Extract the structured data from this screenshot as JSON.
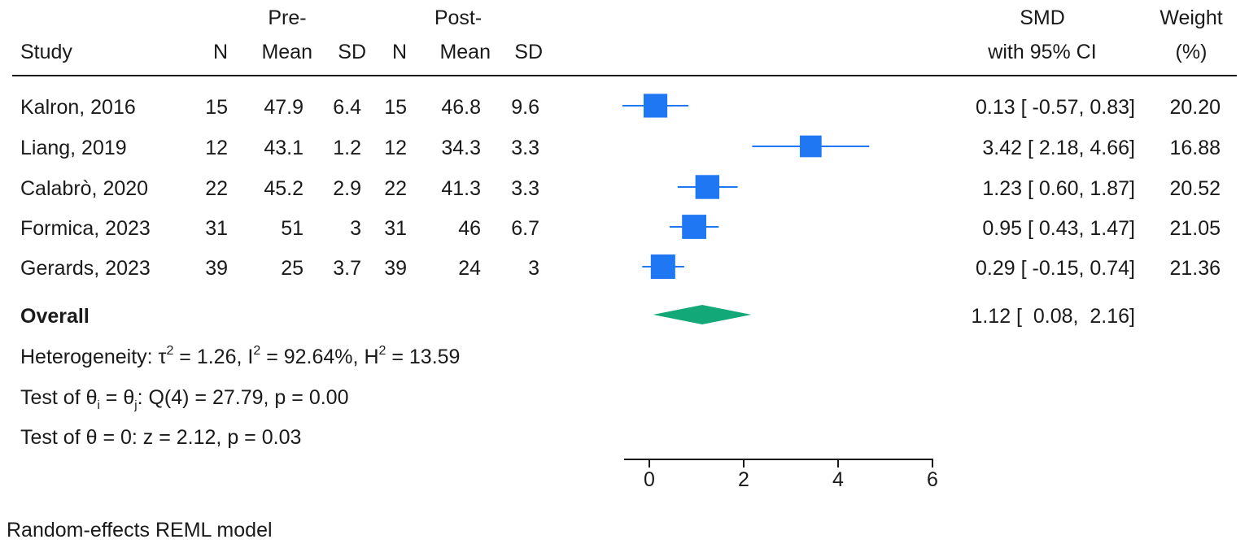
{
  "chart_data": {
    "type": "forest",
    "headers": {
      "study": "Study",
      "pre_label": "Pre-",
      "post_label": "Post-",
      "n": "N",
      "mean": "Mean",
      "sd": "SD",
      "smd_line1": "SMD",
      "smd_line2": "with 95% CI",
      "weight_line1": "Weight",
      "weight_line2": "(%)"
    },
    "studies": [
      {
        "name": "Kalron, 2016",
        "pre_n": "15",
        "pre_mean": "47.9",
        "pre_sd": "6.4",
        "post_n": "15",
        "post_mean": "46.8",
        "post_sd": "9.6",
        "smd": 0.13,
        "lower": -0.57,
        "upper": 0.83,
        "ci_text": "0.13 [ -0.57,  0.83]",
        "weight": "20.20"
      },
      {
        "name": "Liang, 2019",
        "pre_n": "12",
        "pre_mean": "43.1",
        "pre_sd": "1.2",
        "post_n": "12",
        "post_mean": "34.3",
        "post_sd": "3.3",
        "smd": 3.42,
        "lower": 2.18,
        "upper": 4.66,
        "ci_text": "3.42 [  2.18,  4.66]",
        "weight": "16.88"
      },
      {
        "name": "Calabrò, 2020",
        "pre_n": "22",
        "pre_mean": "45.2",
        "pre_sd": "2.9",
        "post_n": "22",
        "post_mean": "41.3",
        "post_sd": "3.3",
        "smd": 1.23,
        "lower": 0.6,
        "upper": 1.87,
        "ci_text": "1.23 [  0.60,  1.87]",
        "weight": "20.52"
      },
      {
        "name": "Formica, 2023",
        "pre_n": "31",
        "pre_mean": "51",
        "pre_sd": "3",
        "post_n": "31",
        "post_mean": "46",
        "post_sd": "6.7",
        "smd": 0.95,
        "lower": 0.43,
        "upper": 1.47,
        "ci_text": "0.95 [  0.43,  1.47]",
        "weight": "21.05"
      },
      {
        "name": "Gerards, 2023",
        "pre_n": "39",
        "pre_mean": "25",
        "pre_sd": "3.7",
        "post_n": "39",
        "post_mean": "24",
        "post_sd": "3",
        "smd": 0.29,
        "lower": -0.15,
        "upper": 0.74,
        "ci_text": "0.29 [ -0.15,  0.74]",
        "weight": "21.36"
      }
    ],
    "overall": {
      "label": "Overall",
      "smd": 1.12,
      "lower": 0.08,
      "upper": 2.16,
      "ci_text": "1.12 [  0.08,  2.16]"
    },
    "heterogeneity": {
      "prefix": "Heterogeneity: ",
      "tau_symbol": "τ",
      "tau_value": " = 1.26, ",
      "i_symbol": "I",
      "i_value": " = 92.64%, ",
      "h_symbol": "H",
      "h_value": " = 13.59",
      "sup": "2"
    },
    "test_ij": {
      "prefix": "Test of θ",
      "sub_i": "i",
      "mid": " = θ",
      "sub_j": "j",
      "rest": ": Q(4) = 27.79, p = 0.00"
    },
    "test_zero": "Test of θ = 0: z = 2.12, p = 0.03",
    "x_ticks": [
      0,
      2,
      4,
      6
    ],
    "xlim": [
      -0.5,
      6
    ],
    "model_note": "Random-effects REML model",
    "colors": {
      "marker": "#1f77f4",
      "diamond": "#13a878",
      "line": "#1f77f4",
      "text": "#1a1a1a"
    }
  }
}
